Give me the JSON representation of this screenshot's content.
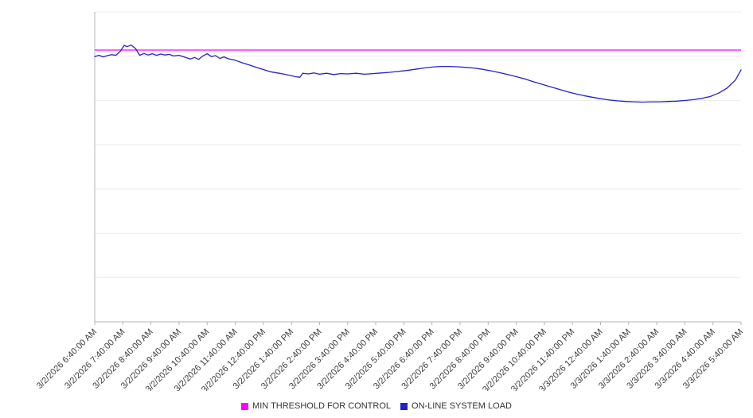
{
  "chart_data": {
    "type": "line",
    "title": "",
    "xlabel": "",
    "ylabel": "",
    "ylim": [
      0,
      100
    ],
    "y_tick_labels": [],
    "grid": "horizontal",
    "grid_divisions": 7,
    "legend_position": "bottom-center",
    "x_tick_labels": [
      "3/2/2026 6:40:00 AM",
      "3/2/2026 7:40:00 AM",
      "3/2/2026 8:40:00 AM",
      "3/2/2026 9:40:00 AM",
      "3/2/2026 10:40:00 AM",
      "3/2/2026 11:40:00 AM",
      "3/2/2026 12:40:00 PM",
      "3/2/2026 1:40:00 PM",
      "3/2/2026 2:40:00 PM",
      "3/2/2026 3:40:00 PM",
      "3/2/2026 4:40:00 PM",
      "3/2/2026 5:40:00 PM",
      "3/2/2026 6:40:00 PM",
      "3/2/2026 7:40:00 PM",
      "3/2/2026 8:40:00 PM",
      "3/2/2026 9:40:00 PM",
      "3/2/2026 10:40:00 PM",
      "3/2/2026 11:40:00 PM",
      "3/3/2026 12:40:00 AM",
      "3/3/2026 1:40:00 AM",
      "3/3/2026 2:40:00 AM",
      "3/3/2026 3:40:00 AM",
      "3/3/2026 4:40:00 AM",
      "3/3/2026 5:40:00 AM"
    ],
    "series": [
      {
        "name": "MIN THRESHOLD FOR CONTROL",
        "type": "threshold",
        "color": "#ff00ff",
        "value": 87.7
      },
      {
        "name": "ON-LINE SYSTEM LOAD",
        "type": "line",
        "color": "#2222cc",
        "points": [
          [
            0,
            85.6
          ],
          [
            0.15,
            86.0
          ],
          [
            0.3,
            85.5
          ],
          [
            0.45,
            85.9
          ],
          [
            0.6,
            86.2
          ],
          [
            0.75,
            86.0
          ],
          [
            0.9,
            87.2
          ],
          [
            1.05,
            89.2
          ],
          [
            1.15,
            88.8
          ],
          [
            1.3,
            89.3
          ],
          [
            1.45,
            88.2
          ],
          [
            1.6,
            86.0
          ],
          [
            1.75,
            86.6
          ],
          [
            1.9,
            86.1
          ],
          [
            2.05,
            86.5
          ],
          [
            2.2,
            86.0
          ],
          [
            2.35,
            86.4
          ],
          [
            2.5,
            86.1
          ],
          [
            2.65,
            86.3
          ],
          [
            2.8,
            85.8
          ],
          [
            3.0,
            86.0
          ],
          [
            3.2,
            85.4
          ],
          [
            3.4,
            84.8
          ],
          [
            3.55,
            85.3
          ],
          [
            3.7,
            84.7
          ],
          [
            3.85,
            85.8
          ],
          [
            4.0,
            86.5
          ],
          [
            4.15,
            85.6
          ],
          [
            4.3,
            85.9
          ],
          [
            4.45,
            85.0
          ],
          [
            4.6,
            85.5
          ],
          [
            4.75,
            84.9
          ],
          [
            5.0,
            84.4
          ],
          [
            5.25,
            83.6
          ],
          [
            5.5,
            82.9
          ],
          [
            5.75,
            82.1
          ],
          [
            6.0,
            81.4
          ],
          [
            6.25,
            80.7
          ],
          [
            6.5,
            80.3
          ],
          [
            6.75,
            79.9
          ],
          [
            7.0,
            79.4
          ],
          [
            7.15,
            79.1
          ],
          [
            7.3,
            78.9
          ],
          [
            7.4,
            80.2
          ],
          [
            7.6,
            80.0
          ],
          [
            7.8,
            80.3
          ],
          [
            8.0,
            79.9
          ],
          [
            8.25,
            80.2
          ],
          [
            8.5,
            79.8
          ],
          [
            8.75,
            80.1
          ],
          [
            9.0,
            80.0
          ],
          [
            9.3,
            80.2
          ],
          [
            9.6,
            79.9
          ],
          [
            9.9,
            80.1
          ],
          [
            10.2,
            80.3
          ],
          [
            10.5,
            80.5
          ],
          [
            10.8,
            80.8
          ],
          [
            11.1,
            81.1
          ],
          [
            11.4,
            81.5
          ],
          [
            11.7,
            81.9
          ],
          [
            12.0,
            82.2
          ],
          [
            12.3,
            82.4
          ],
          [
            12.6,
            82.4
          ],
          [
            12.9,
            82.3
          ],
          [
            13.2,
            82.1
          ],
          [
            13.5,
            81.9
          ],
          [
            13.8,
            81.5
          ],
          [
            14.1,
            81.0
          ],
          [
            14.4,
            80.4
          ],
          [
            14.7,
            79.8
          ],
          [
            15.0,
            79.1
          ],
          [
            15.3,
            78.4
          ],
          [
            15.6,
            77.5
          ],
          [
            15.9,
            76.7
          ],
          [
            16.2,
            75.9
          ],
          [
            16.5,
            75.1
          ],
          [
            16.8,
            74.3
          ],
          [
            17.1,
            73.6
          ],
          [
            17.4,
            73.0
          ],
          [
            17.7,
            72.5
          ],
          [
            18.0,
            72.0
          ],
          [
            18.3,
            71.6
          ],
          [
            18.6,
            71.3
          ],
          [
            18.9,
            71.1
          ],
          [
            19.2,
            71.0
          ],
          [
            19.5,
            70.9
          ],
          [
            19.8,
            71.0
          ],
          [
            20.1,
            71.0
          ],
          [
            20.4,
            71.1
          ],
          [
            20.7,
            71.2
          ],
          [
            21.0,
            71.4
          ],
          [
            21.3,
            71.7
          ],
          [
            21.6,
            72.1
          ],
          [
            21.9,
            72.7
          ],
          [
            22.2,
            73.8
          ],
          [
            22.5,
            75.4
          ],
          [
            22.8,
            78.0
          ],
          [
            23.0,
            81.3
          ]
        ]
      }
    ]
  },
  "colors": {
    "background": "#ffffff",
    "gridline": "#ececec",
    "axis": "#b5b5b5",
    "tick_label": "#3c3c3c",
    "legend_text": "#333333",
    "threshold": "#ff00ff",
    "load": "#2222cc"
  }
}
